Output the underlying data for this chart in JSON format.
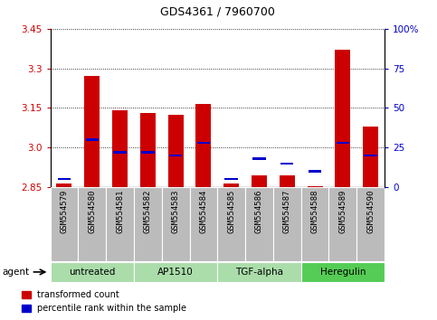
{
  "title": "GDS4361 / 7960700",
  "samples": [
    "GSM554579",
    "GSM554580",
    "GSM554581",
    "GSM554582",
    "GSM554583",
    "GSM554584",
    "GSM554585",
    "GSM554586",
    "GSM554587",
    "GSM554588",
    "GSM554589",
    "GSM554590"
  ],
  "red_values": [
    2.865,
    3.27,
    3.14,
    3.13,
    3.125,
    3.165,
    2.865,
    2.895,
    2.895,
    2.855,
    3.37,
    3.08
  ],
  "blue_values_pct": [
    5,
    30,
    22,
    22,
    20,
    28,
    5,
    18,
    15,
    10,
    28,
    20
  ],
  "ymin": 2.85,
  "ymax": 3.45,
  "y_ticks": [
    2.85,
    3.0,
    3.15,
    3.3,
    3.45
  ],
  "y_right_ticks_pct": [
    0,
    25,
    50,
    75,
    100
  ],
  "y_right_labels": [
    "0",
    "25",
    "50",
    "75",
    "100%"
  ],
  "groups": [
    {
      "label": "untreated",
      "start": 0,
      "end": 3,
      "color": "#aaddaa"
    },
    {
      "label": "AP1510",
      "start": 3,
      "end": 6,
      "color": "#aaddaa"
    },
    {
      "label": "TGF-alpha",
      "start": 6,
      "end": 9,
      "color": "#aaddaa"
    },
    {
      "label": "Heregulin",
      "start": 9,
      "end": 12,
      "color": "#55cc55"
    }
  ],
  "legend_red": "transformed count",
  "legend_blue": "percentile rank within the sample",
  "bar_width": 0.55,
  "baseline": 2.85,
  "agent_label": "agent",
  "red_color": "#cc0000",
  "blue_color": "#0000cc",
  "dotted_grid_color": "#000000",
  "left_tick_color": "#cc0000",
  "right_tick_color": "#0000cc",
  "xtick_bg": "#bbbbbb",
  "group_border_color": "#ffffff"
}
